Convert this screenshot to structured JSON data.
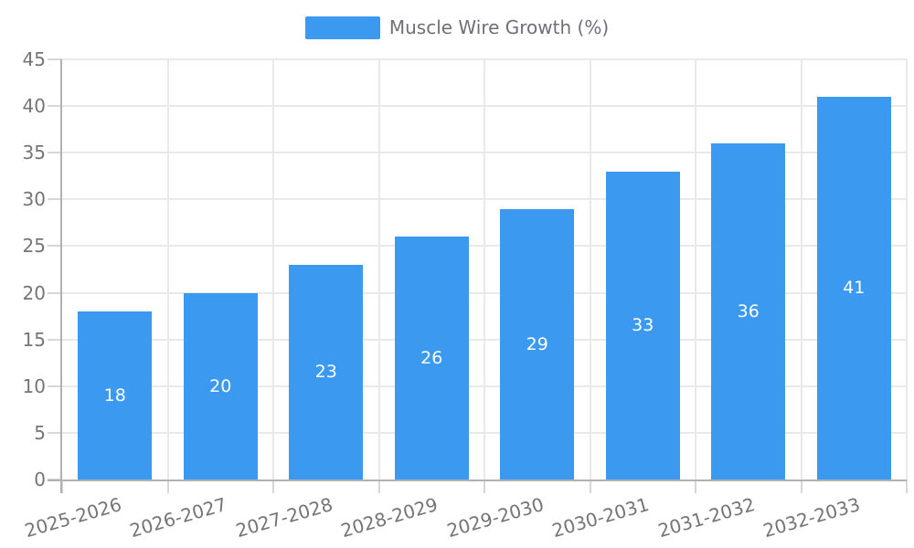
{
  "legend": {
    "label": "Muscle Wire Growth (%)"
  },
  "chart_data": {
    "type": "bar",
    "title": "Muscle Wire Growth (%)",
    "categories": [
      "2025-2026",
      "2026-2027",
      "2027-2028",
      "2028-2029",
      "2029-2030",
      "2030-2031",
      "2031-2032",
      "2032-2033"
    ],
    "values": [
      18,
      20,
      23,
      26,
      29,
      33,
      36,
      41
    ],
    "series": [
      {
        "name": "Muscle Wire Growth (%)",
        "values": [
          18,
          20,
          23,
          26,
          29,
          33,
          36,
          41
        ]
      }
    ],
    "value_labels": [
      "18",
      "20",
      "23",
      "26",
      "29",
      "33",
      "36",
      "41"
    ],
    "xlabel": "",
    "ylabel": "",
    "ylim": [
      0,
      45
    ],
    "y_ticks": [
      0,
      5,
      10,
      15,
      20,
      25,
      30,
      35,
      40,
      45
    ],
    "grid": true,
    "legend_position": "top",
    "colors": {
      "bar": "#3B99F0",
      "bar_value_text": "#ffffff",
      "axis_text": "#757575",
      "legend_text": "#6E7079",
      "gridline": "#e9e9e9",
      "tick": "#d7d7d7",
      "axis_line": "#b1b1b1",
      "background": "#ffffff"
    }
  }
}
